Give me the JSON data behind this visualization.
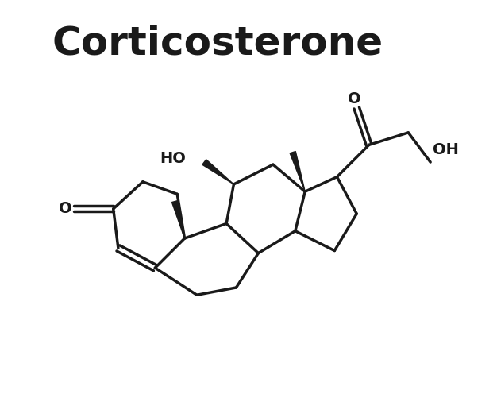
{
  "title": "Corticosterone",
  "title_fontsize": 36,
  "bg_color": "#ffffff",
  "line_color": "#1a1a1a",
  "line_width": 2.5,
  "label_color": "#1a1a1a",
  "label_fontsize": 14,
  "fig_width": 6.26,
  "fig_height": 5.01,
  "xlim": [
    0,
    10
  ],
  "ylim": [
    0,
    8
  ]
}
